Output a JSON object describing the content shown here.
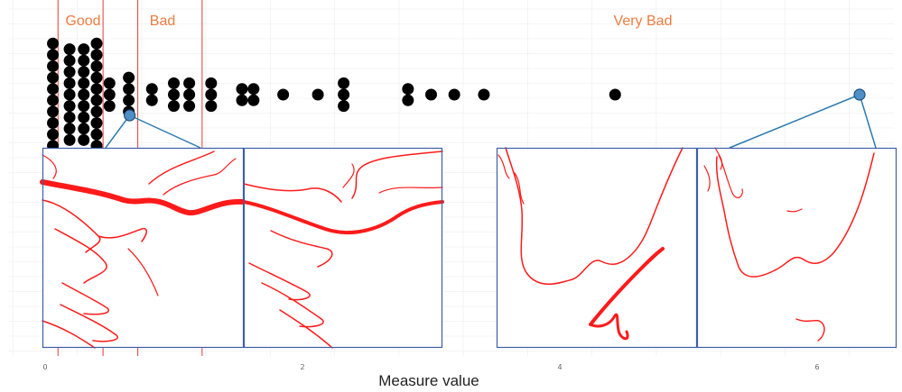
{
  "chart_data": {
    "type": "scatter",
    "subtype": "dot-plot",
    "xlabel": "Measure value",
    "x_ticks": [
      0,
      2,
      4,
      6
    ],
    "xlim": [
      -0.28,
      6.75
    ],
    "grid": true,
    "regions": [
      {
        "label": "Good",
        "x_start": 0.1,
        "x_end": 0.45
      },
      {
        "label": "Bad",
        "x_start": 0.72,
        "x_end": 1.22
      },
      {
        "label": "Very Bad",
        "x_start": null,
        "x_end": null
      }
    ],
    "region_color": "#f07b3f",
    "region_line_color": "#e83a3a",
    "dot_color": "#000000",
    "highlight_color": "#4f8fc8",
    "connector_color": "#2b7bb0",
    "frame_color": "#3d5fa8",
    "curve_color": "#ff1a1a",
    "stacks": [
      {
        "x": 0.06,
        "count": 10
      },
      {
        "x": 0.19,
        "count": 9
      },
      {
        "x": 0.3,
        "count": 9
      },
      {
        "x": 0.4,
        "count": 10
      },
      {
        "x": 0.5,
        "count": 3
      },
      {
        "x": 0.65,
        "count": 4
      },
      {
        "x": 0.83,
        "count": 2
      },
      {
        "x": 1.0,
        "count": 3
      },
      {
        "x": 1.12,
        "count": 3
      },
      {
        "x": 1.29,
        "count": 3
      },
      {
        "x": 1.53,
        "count": 2
      },
      {
        "x": 1.62,
        "count": 2
      },
      {
        "x": 1.85,
        "count": 1
      },
      {
        "x": 2.12,
        "count": 1
      },
      {
        "x": 2.32,
        "count": 3
      },
      {
        "x": 2.82,
        "count": 2
      },
      {
        "x": 3.0,
        "count": 1
      },
      {
        "x": 3.18,
        "count": 1
      },
      {
        "x": 3.41,
        "count": 1
      },
      {
        "x": 4.43,
        "count": 1
      }
    ],
    "highlighted_points": [
      {
        "x": 0.65,
        "y": 0.0
      },
      {
        "x": 6.33,
        "y": 0.0
      }
    ]
  }
}
